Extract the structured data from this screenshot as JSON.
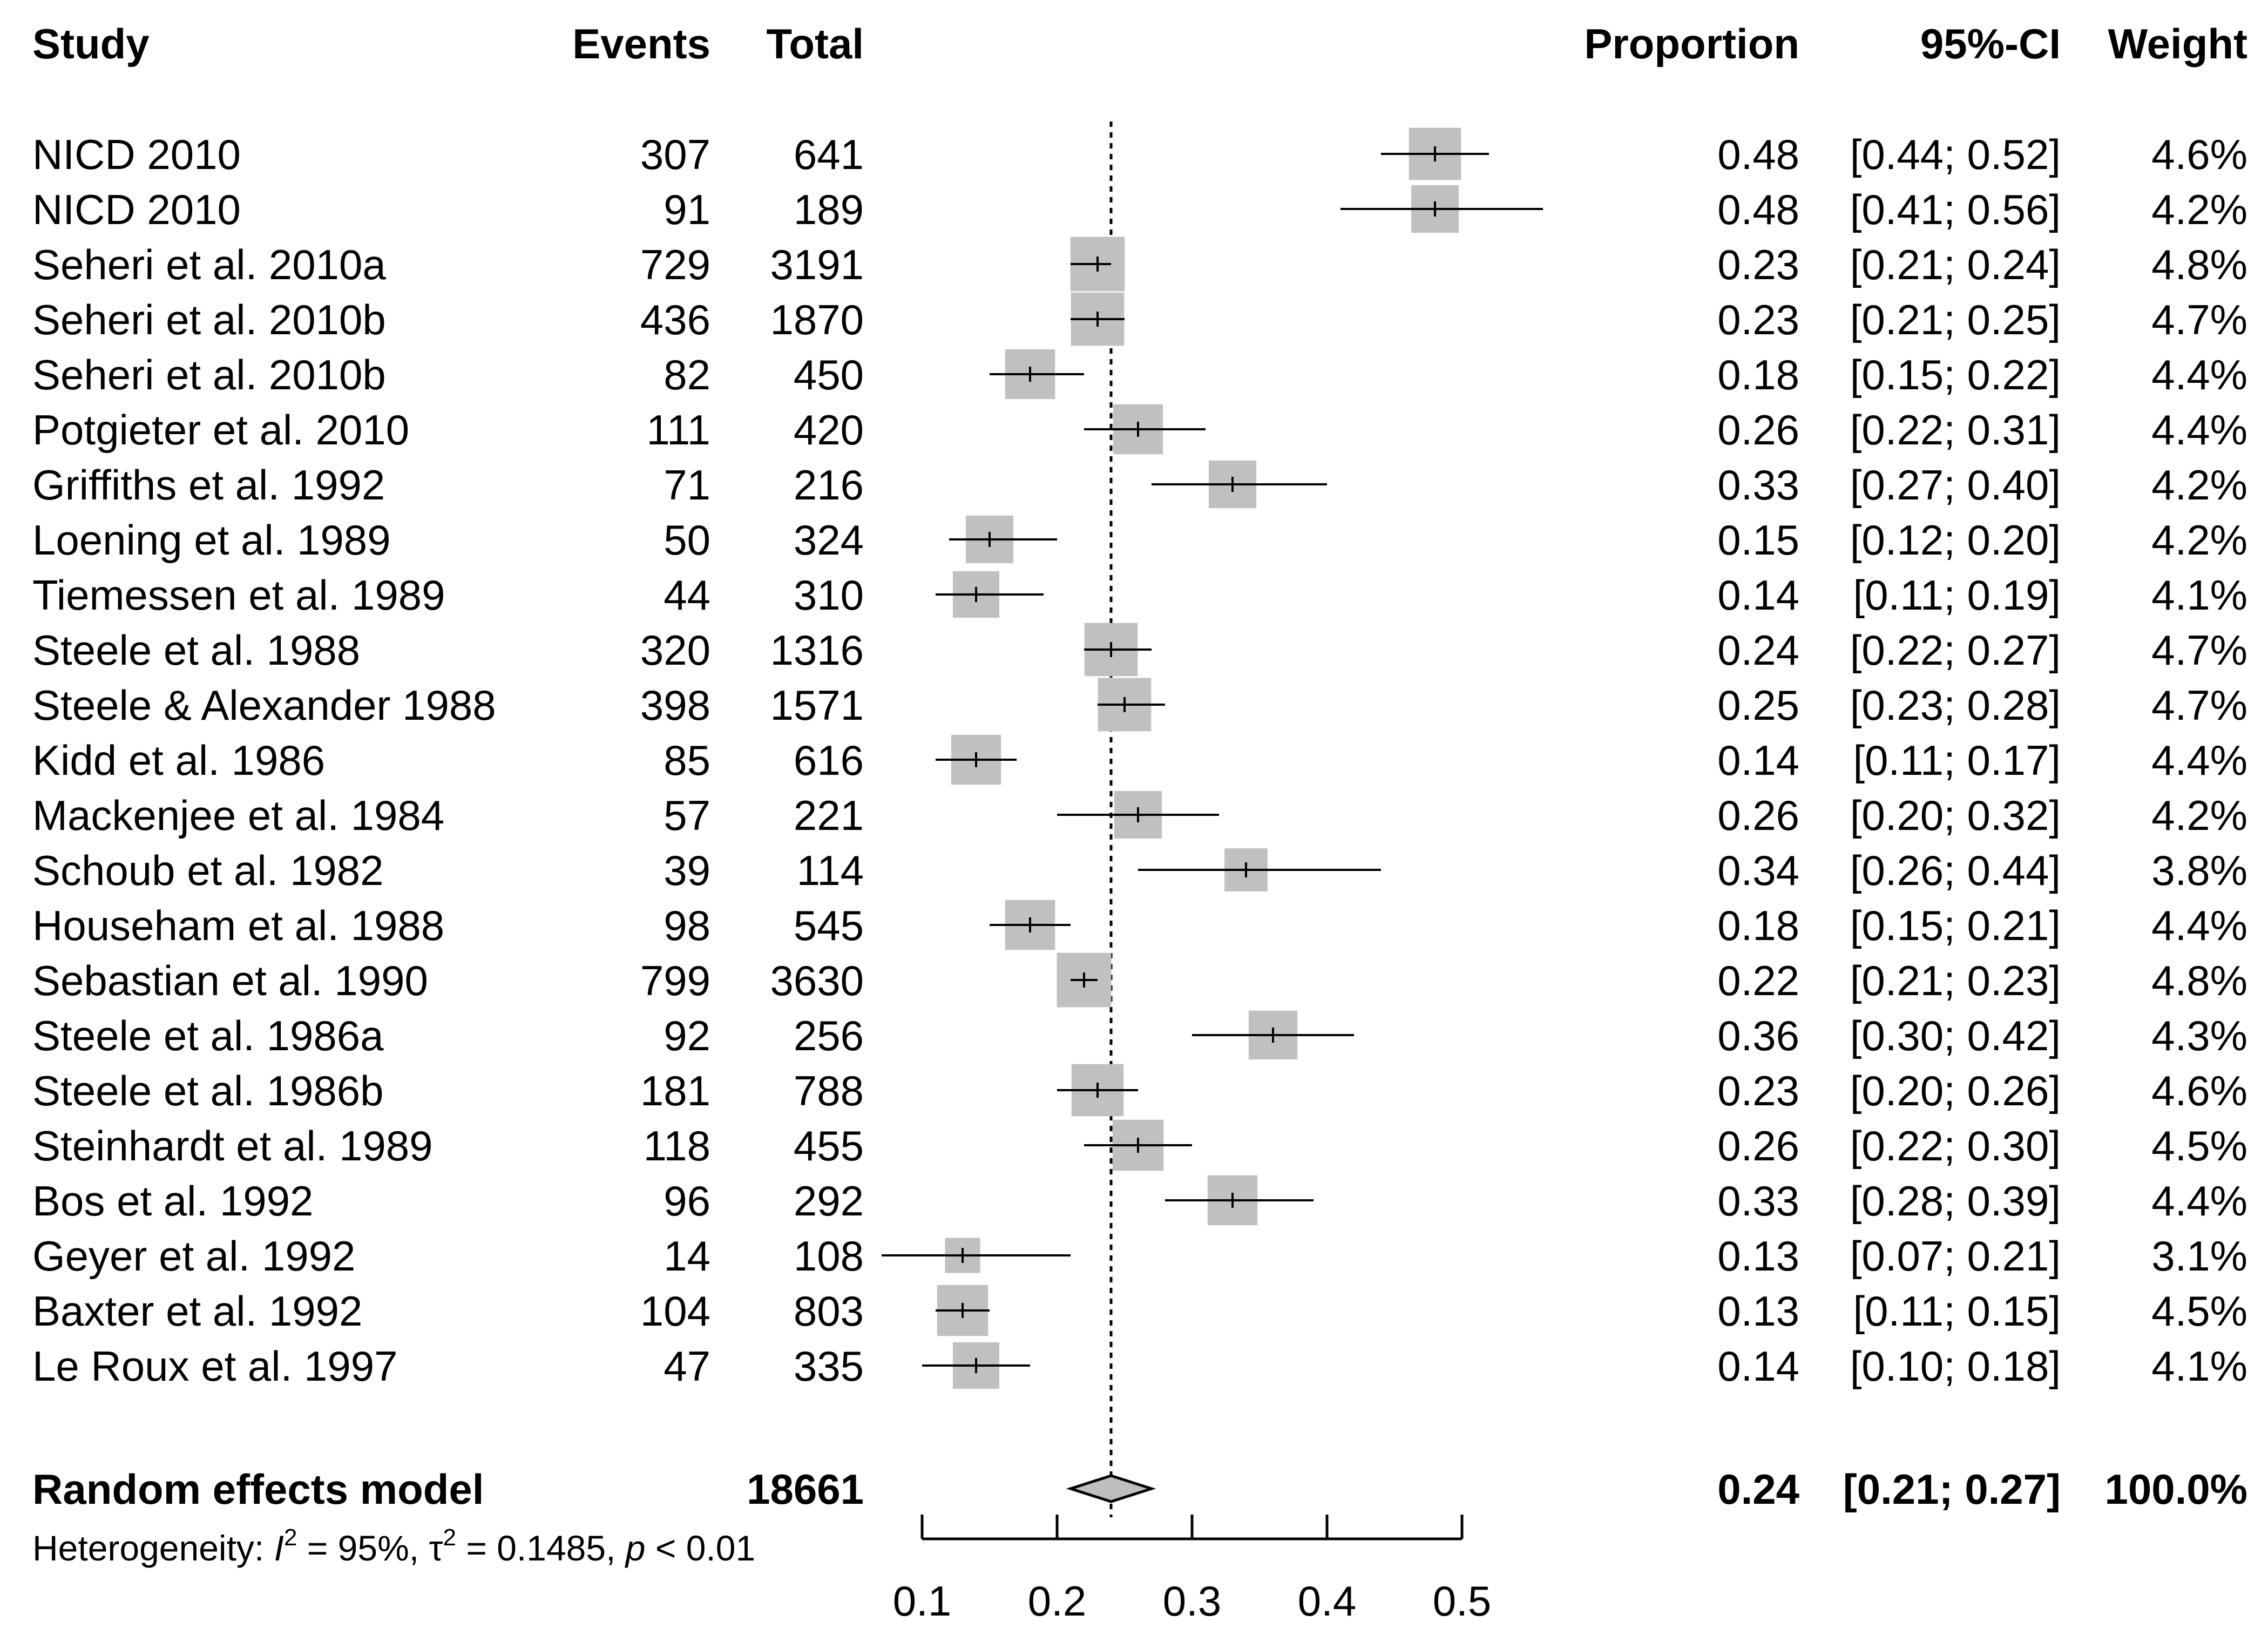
{
  "chart_data": {
    "type": "forest",
    "headers": {
      "study": "Study",
      "events": "Events",
      "total": "Total",
      "proportion": "Proportion",
      "ci": "95%-CI",
      "weight": "Weight"
    },
    "studies": [
      {
        "study": "NICD 2010",
        "events": "307",
        "total": "641",
        "proportion": 0.48,
        "ci_low": 0.44,
        "ci_high": 0.52,
        "proportion_text": "0.48",
        "ci_text": "[0.44; 0.52]",
        "weight_text": "4.6%",
        "weight": 4.6
      },
      {
        "study": "NICD 2010",
        "events": "91",
        "total": "189",
        "proportion": 0.48,
        "ci_low": 0.41,
        "ci_high": 0.56,
        "proportion_text": "0.48",
        "ci_text": "[0.41; 0.56]",
        "weight_text": "4.2%",
        "weight": 4.2
      },
      {
        "study": "Seheri et al. 2010a",
        "events": "729",
        "total": "3191",
        "proportion": 0.23,
        "ci_low": 0.21,
        "ci_high": 0.24,
        "proportion_text": "0.23",
        "ci_text": "[0.21; 0.24]",
        "weight_text": "4.8%",
        "weight": 4.8
      },
      {
        "study": "Seheri et al. 2010b",
        "events": "436",
        "total": "1870",
        "proportion": 0.23,
        "ci_low": 0.21,
        "ci_high": 0.25,
        "proportion_text": "0.23",
        "ci_text": "[0.21; 0.25]",
        "weight_text": "4.7%",
        "weight": 4.7
      },
      {
        "study": "Seheri et al. 2010b",
        "events": "82",
        "total": "450",
        "proportion": 0.18,
        "ci_low": 0.15,
        "ci_high": 0.22,
        "proportion_text": "0.18",
        "ci_text": "[0.15; 0.22]",
        "weight_text": "4.4%",
        "weight": 4.4
      },
      {
        "study": "Potgieter et al. 2010",
        "events": "111",
        "total": "420",
        "proportion": 0.26,
        "ci_low": 0.22,
        "ci_high": 0.31,
        "proportion_text": "0.26",
        "ci_text": "[0.22; 0.31]",
        "weight_text": "4.4%",
        "weight": 4.4
      },
      {
        "study": "Griffiths et al. 1992",
        "events": "71",
        "total": "216",
        "proportion": 0.33,
        "ci_low": 0.27,
        "ci_high": 0.4,
        "proportion_text": "0.33",
        "ci_text": "[0.27; 0.40]",
        "weight_text": "4.2%",
        "weight": 4.2
      },
      {
        "study": "Loening et al. 1989",
        "events": "50",
        "total": "324",
        "proportion": 0.15,
        "ci_low": 0.12,
        "ci_high": 0.2,
        "proportion_text": "0.15",
        "ci_text": "[0.12; 0.20]",
        "weight_text": "4.2%",
        "weight": 4.2
      },
      {
        "study": "Tiemessen et al. 1989",
        "events": "44",
        "total": "310",
        "proportion": 0.14,
        "ci_low": 0.11,
        "ci_high": 0.19,
        "proportion_text": "0.14",
        "ci_text": "[0.11; 0.19]",
        "weight_text": "4.1%",
        "weight": 4.1
      },
      {
        "study": "Steele et al. 1988",
        "events": "320",
        "total": "1316",
        "proportion": 0.24,
        "ci_low": 0.22,
        "ci_high": 0.27,
        "proportion_text": "0.24",
        "ci_text": "[0.22; 0.27]",
        "weight_text": "4.7%",
        "weight": 4.7
      },
      {
        "study": "Steele & Alexander 1988",
        "events": "398",
        "total": "1571",
        "proportion": 0.25,
        "ci_low": 0.23,
        "ci_high": 0.28,
        "proportion_text": "0.25",
        "ci_text": "[0.23; 0.28]",
        "weight_text": "4.7%",
        "weight": 4.7
      },
      {
        "study": "Kidd et al. 1986",
        "events": "85",
        "total": "616",
        "proportion": 0.14,
        "ci_low": 0.11,
        "ci_high": 0.17,
        "proportion_text": "0.14",
        "ci_text": "[0.11; 0.17]",
        "weight_text": "4.4%",
        "weight": 4.4
      },
      {
        "study": "Mackenjee et al. 1984",
        "events": "57",
        "total": "221",
        "proportion": 0.26,
        "ci_low": 0.2,
        "ci_high": 0.32,
        "proportion_text": "0.26",
        "ci_text": "[0.20; 0.32]",
        "weight_text": "4.2%",
        "weight": 4.2
      },
      {
        "study": "Schoub et al. 1982",
        "events": "39",
        "total": "114",
        "proportion": 0.34,
        "ci_low": 0.26,
        "ci_high": 0.44,
        "proportion_text": "0.34",
        "ci_text": "[0.26; 0.44]",
        "weight_text": "3.8%",
        "weight": 3.8
      },
      {
        "study": "Househam et al. 1988",
        "events": "98",
        "total": "545",
        "proportion": 0.18,
        "ci_low": 0.15,
        "ci_high": 0.21,
        "proportion_text": "0.18",
        "ci_text": "[0.15; 0.21]",
        "weight_text": "4.4%",
        "weight": 4.4
      },
      {
        "study": "Sebastian et al. 1990",
        "events": "799",
        "total": "3630",
        "proportion": 0.22,
        "ci_low": 0.21,
        "ci_high": 0.23,
        "proportion_text": "0.22",
        "ci_text": "[0.21; 0.23]",
        "weight_text": "4.8%",
        "weight": 4.8
      },
      {
        "study": "Steele et al. 1986a",
        "events": "92",
        "total": "256",
        "proportion": 0.36,
        "ci_low": 0.3,
        "ci_high": 0.42,
        "proportion_text": "0.36",
        "ci_text": "[0.30; 0.42]",
        "weight_text": "4.3%",
        "weight": 4.3
      },
      {
        "study": "Steele et al. 1986b",
        "events": "181",
        "total": "788",
        "proportion": 0.23,
        "ci_low": 0.2,
        "ci_high": 0.26,
        "proportion_text": "0.23",
        "ci_text": "[0.20; 0.26]",
        "weight_text": "4.6%",
        "weight": 4.6
      },
      {
        "study": "Steinhardt et al. 1989",
        "events": "118",
        "total": "455",
        "proportion": 0.26,
        "ci_low": 0.22,
        "ci_high": 0.3,
        "proportion_text": "0.26",
        "ci_text": "[0.22; 0.30]",
        "weight_text": "4.5%",
        "weight": 4.5
      },
      {
        "study": "Bos et al. 1992",
        "events": "96",
        "total": "292",
        "proportion": 0.33,
        "ci_low": 0.28,
        "ci_high": 0.39,
        "proportion_text": "0.33",
        "ci_text": "[0.28; 0.39]",
        "weight_text": "4.4%",
        "weight": 4.4
      },
      {
        "study": "Geyer et al. 1992",
        "events": "14",
        "total": "108",
        "proportion": 0.13,
        "ci_low": 0.07,
        "ci_high": 0.21,
        "proportion_text": "0.13",
        "ci_text": "[0.07; 0.21]",
        "weight_text": "3.1%",
        "weight": 3.1
      },
      {
        "study": "Baxter et al. 1992",
        "events": "104",
        "total": "803",
        "proportion": 0.13,
        "ci_low": 0.11,
        "ci_high": 0.15,
        "proportion_text": "0.13",
        "ci_text": "[0.11; 0.15]",
        "weight_text": "4.5%",
        "weight": 4.5
      },
      {
        "study": "Le Roux et al. 1997",
        "events": "47",
        "total": "335",
        "proportion": 0.14,
        "ci_low": 0.1,
        "ci_high": 0.18,
        "proportion_text": "0.14",
        "ci_text": "[0.10; 0.18]",
        "weight_text": "4.1%",
        "weight": 4.1
      }
    ],
    "summary": {
      "label": "Random effects model",
      "total": "18661",
      "proportion": 0.24,
      "ci_low": 0.21,
      "ci_high": 0.27,
      "proportion_text": "0.24",
      "ci_text": "[0.21; 0.27]",
      "weight_text": "100.0%"
    },
    "heterogeneity": {
      "prefix": "Heterogeneity: ",
      "i2_symbol": "I",
      "i2_sup": "2",
      "i2_value": " = 95%, ",
      "tau_symbol": "τ",
      "tau_sup": "2",
      "tau_value": " = 0.1485, ",
      "p_symbol": "p",
      "p_value": " < 0.01"
    },
    "x_axis": {
      "ticks": [
        0.1,
        0.2,
        0.3,
        0.4,
        0.5
      ],
      "tick_labels": [
        "0.1",
        "0.2",
        "0.3",
        "0.4",
        "0.5"
      ],
      "range": [
        0.1,
        0.5
      ]
    },
    "reference_line": 0.24,
    "colors": {
      "box": "#c0c0c0",
      "box_light": "#d3d3d3",
      "diamond": "#bebebe",
      "line": "#000000"
    }
  }
}
